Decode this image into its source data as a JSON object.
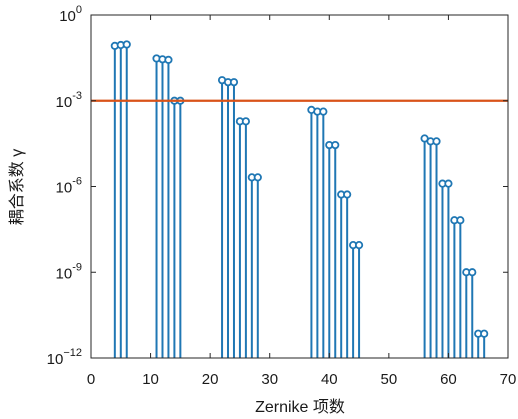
{
  "chart_data": {
    "type": "stem",
    "title": "",
    "xlabel": "Zernike 项数",
    "ylabel": "耦合系数 γ",
    "xlim": [
      0,
      70
    ],
    "ylim_log10": [
      -12,
      0
    ],
    "yscale": "log",
    "x_ticks": [
      "0",
      "10",
      "20",
      "30",
      "40",
      "50",
      "60",
      "70"
    ],
    "y_ticks": [
      {
        "base": "10",
        "exp": "0"
      },
      {
        "base": "10",
        "exp": "-3"
      },
      {
        "base": "10",
        "exp": "-6"
      },
      {
        "base": "10",
        "exp": "-9"
      },
      {
        "base": "10",
        "exp": "−12"
      }
    ],
    "grid": false,
    "series": [
      {
        "color": "#1f77b4",
        "points": [
          {
            "x": 4,
            "log10y": -1.08
          },
          {
            "x": 5,
            "log10y": -1.05
          },
          {
            "x": 6,
            "log10y": -1.03
          },
          {
            "x": 11,
            "log10y": -1.52
          },
          {
            "x": 12,
            "log10y": -1.55
          },
          {
            "x": 13,
            "log10y": -1.57
          },
          {
            "x": 14,
            "log10y": -3.0
          },
          {
            "x": 15,
            "log10y": -3.0
          },
          {
            "x": 22,
            "log10y": -2.28
          },
          {
            "x": 23,
            "log10y": -2.35
          },
          {
            "x": 24,
            "log10y": -2.35
          },
          {
            "x": 25,
            "log10y": -3.72
          },
          {
            "x": 26,
            "log10y": -3.72
          },
          {
            "x": 27,
            "log10y": -5.68
          },
          {
            "x": 28,
            "log10y": -5.68
          },
          {
            "x": 37,
            "log10y": -3.32
          },
          {
            "x": 38,
            "log10y": -3.38
          },
          {
            "x": 39,
            "log10y": -3.38
          },
          {
            "x": 40,
            "log10y": -4.55
          },
          {
            "x": 41,
            "log10y": -4.55
          },
          {
            "x": 42,
            "log10y": -6.28
          },
          {
            "x": 43,
            "log10y": -6.28
          },
          {
            "x": 44,
            "log10y": -8.05
          },
          {
            "x": 45,
            "log10y": -8.05
          },
          {
            "x": 56,
            "log10y": -4.32
          },
          {
            "x": 57,
            "log10y": -4.42
          },
          {
            "x": 58,
            "log10y": -4.42
          },
          {
            "x": 59,
            "log10y": -5.9
          },
          {
            "x": 60,
            "log10y": -5.9
          },
          {
            "x": 61,
            "log10y": -7.18
          },
          {
            "x": 62,
            "log10y": -7.18
          },
          {
            "x": 63,
            "log10y": -9.0
          },
          {
            "x": 64,
            "log10y": -9.0
          },
          {
            "x": 65,
            "log10y": -11.15
          },
          {
            "x": 66,
            "log10y": -11.15
          }
        ]
      }
    ],
    "reference_line": {
      "log10y": -3,
      "color": "#d95319"
    }
  }
}
